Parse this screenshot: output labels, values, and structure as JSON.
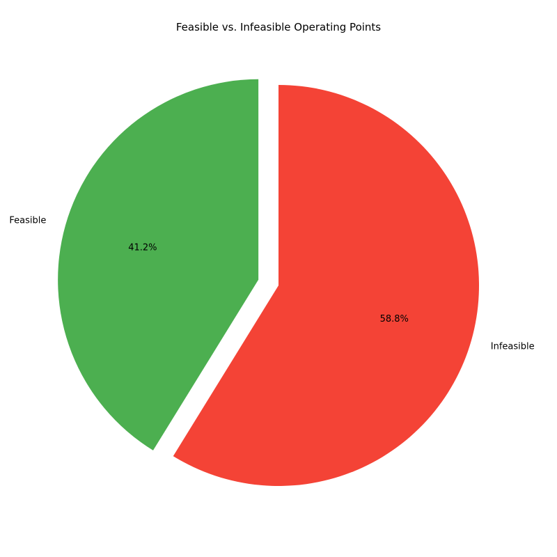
{
  "chart_data": {
    "type": "pie",
    "title": "Feasible vs. Infeasible Operating Points",
    "slices": [
      {
        "label": "Feasible",
        "value": 41.2,
        "percent_label": "41.2%",
        "color": "#4caf50",
        "exploded": true
      },
      {
        "label": "Infeasible",
        "value": 58.8,
        "percent_label": "58.8%",
        "color": "#f44336",
        "exploded": false
      }
    ],
    "start_angle_deg": 90,
    "direction": "counterclockwise",
    "legend": "none"
  }
}
